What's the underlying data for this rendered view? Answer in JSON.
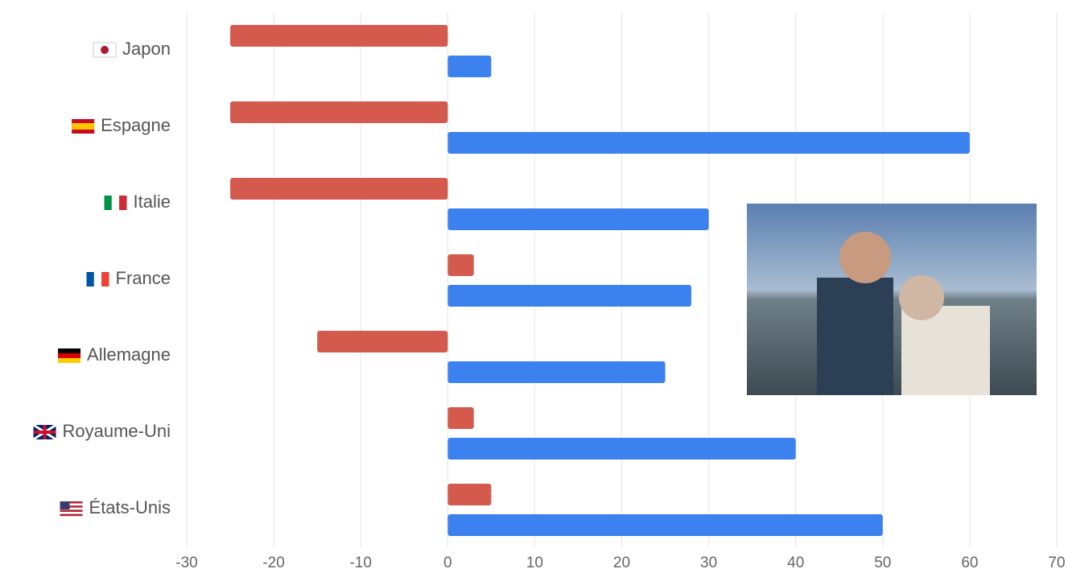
{
  "chart_data": {
    "type": "hbar",
    "categories": [
      "Japon",
      "Espagne",
      "Italie",
      "France",
      "Allemagne",
      "Royaume-Uni",
      "États-Unis"
    ],
    "series": [
      {
        "color": "#d55a4e",
        "values": [
          -25,
          -25,
          -25,
          3,
          -15,
          3,
          5
        ]
      },
      {
        "color": "#3b82ee",
        "values": [
          5,
          60,
          30,
          28,
          25,
          40,
          50
        ]
      }
    ],
    "xlim": [
      -30,
      70
    ],
    "xticks": [
      -30,
      -20,
      -10,
      0,
      10,
      20,
      30,
      40,
      50,
      60,
      70
    ],
    "grid": true
  }
}
